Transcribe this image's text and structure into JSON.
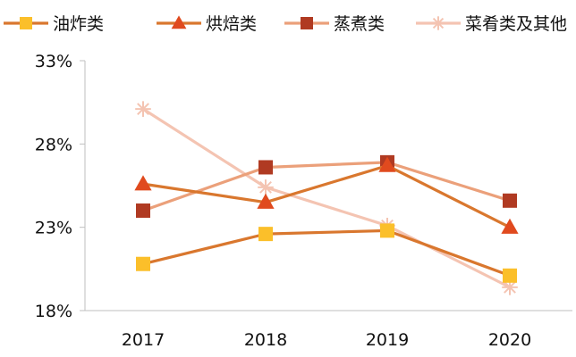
{
  "chart_data": {
    "type": "line",
    "categories": [
      "2017",
      "2018",
      "2019",
      "2020"
    ],
    "ylim": [
      18,
      33
    ],
    "yticks": [
      "18%",
      "23%",
      "28%",
      "33%"
    ],
    "ytick_values": [
      18,
      23,
      28,
      33
    ],
    "legend_position": "top",
    "grid": false,
    "series": [
      {
        "name": "油炸类",
        "values": [
          20.8,
          22.6,
          22.8,
          20.1
        ],
        "color": "#D9772E",
        "marker": "square",
        "marker_color": "#FBBF2A"
      },
      {
        "name": "烘焙类",
        "values": [
          25.6,
          24.5,
          26.7,
          23.0
        ],
        "color": "#D9772E",
        "marker": "triangle",
        "marker_color": "#E04A1E"
      },
      {
        "name": "蒸煮类",
        "values": [
          24.0,
          26.6,
          26.9,
          24.6
        ],
        "color": "#EBA07A",
        "marker": "square",
        "marker_color": "#B03A22"
      },
      {
        "name": "菜肴类及其他",
        "values": [
          30.1,
          25.4,
          23.1,
          19.4
        ],
        "color": "#F4C4B2",
        "marker": "asterisk",
        "marker_color": "#F4C4B2"
      }
    ]
  }
}
